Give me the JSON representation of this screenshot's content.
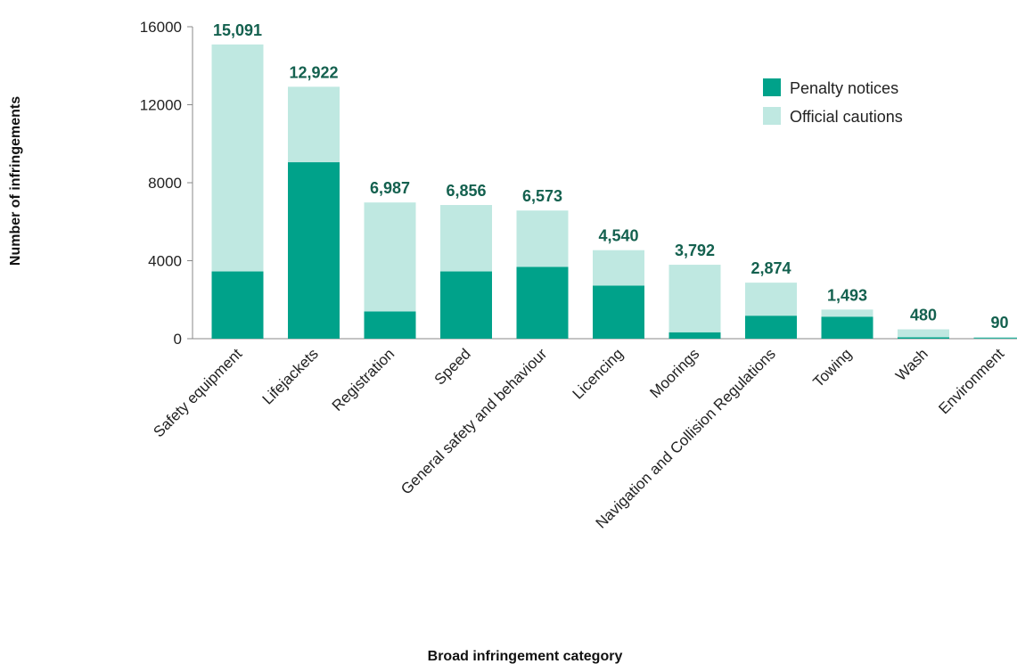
{
  "chart_data": {
    "type": "bar",
    "stacked": true,
    "xlabel": "Broad infringement category",
    "ylabel": "Number of infringements",
    "ylim": [
      0,
      16000
    ],
    "yticks": [
      0,
      4000,
      8000,
      12000,
      16000
    ],
    "grid": false,
    "legend_position": "top-right",
    "categories": [
      "Safety equipment",
      "Lifejackets",
      "Registration",
      "Speed",
      "General safety and behaviour",
      "Licencing",
      "Moorings",
      "Navigation and Collision Regulations",
      "Towing",
      "Wash",
      "Environment"
    ],
    "series": [
      {
        "name": "Penalty notices",
        "color": "#00a28a",
        "values": [
          3450,
          9050,
          1400,
          3450,
          3680,
          2720,
          330,
          1180,
          1130,
          70,
          40
        ]
      },
      {
        "name": "Official cautions",
        "color": "#bfe8e1",
        "values": [
          11641,
          3872,
          5587,
          3406,
          2893,
          1820,
          3462,
          1694,
          363,
          410,
          50
        ]
      }
    ],
    "totals": [
      "15,091",
      "12,922",
      "6,987",
      "6,856",
      "6,573",
      "4,540",
      "3,792",
      "2,874",
      "1,493",
      "480",
      "90"
    ]
  }
}
